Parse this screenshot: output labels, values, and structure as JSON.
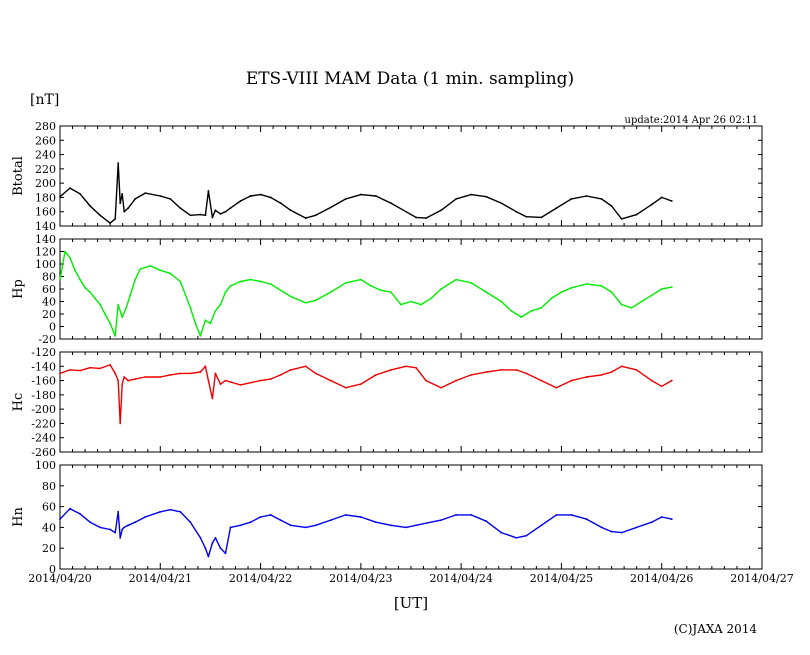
{
  "chart_data": {
    "type": "line",
    "title": "ETS-VIII MAM Data (1 min. sampling)",
    "unit_label": "[nT]",
    "update_text": "update:2014 Apr 26 02:11",
    "xlabel": "[UT]",
    "copyright": "(C)JAXA 2014",
    "x_ticks": [
      "2014/04/20",
      "2014/04/21",
      "2014/04/22",
      "2014/04/23",
      "2014/04/24",
      "2014/04/25",
      "2014/04/26",
      "2014/04/27"
    ],
    "xlim_days": [
      0,
      7
    ],
    "panels": [
      {
        "name": "Btotal",
        "color": "#000000",
        "ylim": [
          140,
          280
        ],
        "y_ticks": [
          140,
          160,
          180,
          200,
          220,
          240,
          260,
          280
        ],
        "x": [
          0.0,
          0.1,
          0.2,
          0.3,
          0.4,
          0.5,
          0.55,
          0.58,
          0.6,
          0.62,
          0.64,
          0.68,
          0.75,
          0.85,
          1.0,
          1.1,
          1.2,
          1.3,
          1.4,
          1.45,
          1.48,
          1.52,
          1.55,
          1.6,
          1.65,
          1.7,
          1.8,
          1.9,
          2.0,
          2.1,
          2.2,
          2.3,
          2.45,
          2.55,
          2.7,
          2.85,
          3.0,
          3.15,
          3.3,
          3.45,
          3.55,
          3.65,
          3.8,
          3.95,
          4.1,
          4.25,
          4.4,
          4.55,
          4.65,
          4.8,
          4.95,
          5.1,
          5.25,
          5.4,
          5.5,
          5.6,
          5.75,
          5.9,
          6.0,
          6.1
        ],
        "values": [
          181,
          193,
          185,
          168,
          155,
          144,
          150,
          228,
          172,
          185,
          160,
          165,
          178,
          186,
          182,
          178,
          165,
          155,
          156,
          155,
          189,
          152,
          162,
          157,
          160,
          165,
          175,
          182,
          184,
          180,
          172,
          162,
          151,
          155,
          166,
          178,
          184,
          182,
          172,
          160,
          152,
          151,
          162,
          178,
          184,
          181,
          172,
          160,
          153,
          152,
          165,
          178,
          182,
          178,
          168,
          150,
          156,
          170,
          180,
          175
        ]
      },
      {
        "name": "Hp",
        "color": "#00ee00",
        "ylim": [
          -20,
          140
        ],
        "y_ticks": [
          -20,
          0,
          20,
          40,
          60,
          80,
          100,
          120,
          140
        ],
        "x": [
          0.0,
          0.05,
          0.1,
          0.15,
          0.2,
          0.25,
          0.3,
          0.35,
          0.4,
          0.45,
          0.5,
          0.55,
          0.58,
          0.62,
          0.66,
          0.7,
          0.75,
          0.8,
          0.9,
          1.0,
          1.1,
          1.2,
          1.3,
          1.35,
          1.4,
          1.45,
          1.5,
          1.55,
          1.6,
          1.65,
          1.7,
          1.8,
          1.9,
          2.0,
          2.1,
          2.2,
          2.3,
          2.45,
          2.55,
          2.7,
          2.85,
          3.0,
          3.1,
          3.2,
          3.3,
          3.4,
          3.5,
          3.6,
          3.7,
          3.8,
          3.95,
          4.1,
          4.25,
          4.4,
          4.5,
          4.6,
          4.7,
          4.8,
          4.9,
          5.0,
          5.1,
          5.25,
          5.4,
          5.5,
          5.6,
          5.7,
          5.8,
          5.9,
          6.0,
          6.1
        ],
        "values": [
          75,
          120,
          110,
          90,
          75,
          62,
          55,
          45,
          35,
          20,
          5,
          -15,
          35,
          15,
          30,
          50,
          75,
          92,
          97,
          90,
          85,
          72,
          30,
          5,
          -15,
          10,
          5,
          25,
          35,
          55,
          65,
          72,
          75,
          72,
          68,
          58,
          48,
          38,
          42,
          55,
          70,
          75,
          65,
          58,
          55,
          35,
          40,
          35,
          45,
          60,
          75,
          70,
          55,
          40,
          25,
          15,
          25,
          30,
          45,
          55,
          62,
          68,
          65,
          55,
          35,
          30,
          40,
          50,
          60,
          63
        ]
      },
      {
        "name": "Hc",
        "color": "#ee0000",
        "ylim": [
          -260,
          -120
        ],
        "y_ticks": [
          -260,
          -240,
          -220,
          -200,
          -180,
          -160,
          -140,
          -120
        ],
        "x": [
          0.0,
          0.1,
          0.2,
          0.3,
          0.4,
          0.5,
          0.55,
          0.58,
          0.6,
          0.62,
          0.64,
          0.68,
          0.75,
          0.85,
          1.0,
          1.1,
          1.2,
          1.3,
          1.4,
          1.45,
          1.48,
          1.52,
          1.55,
          1.6,
          1.65,
          1.7,
          1.8,
          1.9,
          2.0,
          2.1,
          2.2,
          2.3,
          2.45,
          2.55,
          2.7,
          2.85,
          3.0,
          3.15,
          3.3,
          3.45,
          3.55,
          3.65,
          3.8,
          3.95,
          4.1,
          4.25,
          4.4,
          4.55,
          4.65,
          4.8,
          4.95,
          5.1,
          5.25,
          5.4,
          5.5,
          5.6,
          5.75,
          5.9,
          6.0,
          6.1
        ],
        "values": [
          -150,
          -145,
          -146,
          -142,
          -143,
          -138,
          -150,
          -160,
          -220,
          -165,
          -155,
          -160,
          -158,
          -155,
          -155,
          -152,
          -150,
          -150,
          -148,
          -140,
          -160,
          -185,
          -150,
          -165,
          -160,
          -162,
          -166,
          -163,
          -160,
          -158,
          -152,
          -145,
          -140,
          -150,
          -160,
          -170,
          -165,
          -152,
          -145,
          -140,
          -142,
          -160,
          -170,
          -160,
          -152,
          -148,
          -145,
          -145,
          -150,
          -160,
          -170,
          -160,
          -155,
          -152,
          -148,
          -140,
          -145,
          -160,
          -168,
          -160
        ]
      },
      {
        "name": "Hn",
        "color": "#0000ee",
        "ylim": [
          0,
          100
        ],
        "y_ticks": [
          0,
          20,
          40,
          60,
          80,
          100
        ],
        "x": [
          0.0,
          0.1,
          0.2,
          0.3,
          0.4,
          0.5,
          0.55,
          0.58,
          0.6,
          0.62,
          0.64,
          0.68,
          0.75,
          0.85,
          1.0,
          1.1,
          1.2,
          1.3,
          1.4,
          1.45,
          1.48,
          1.52,
          1.55,
          1.6,
          1.65,
          1.7,
          1.8,
          1.9,
          2.0,
          2.1,
          2.2,
          2.3,
          2.45,
          2.55,
          2.7,
          2.85,
          3.0,
          3.15,
          3.3,
          3.45,
          3.55,
          3.65,
          3.8,
          3.95,
          4.1,
          4.25,
          4.4,
          4.55,
          4.65,
          4.8,
          4.95,
          5.1,
          5.25,
          5.4,
          5.5,
          5.6,
          5.75,
          5.9,
          6.0,
          6.1
        ],
        "values": [
          48,
          58,
          53,
          45,
          40,
          38,
          35,
          55,
          30,
          38,
          40,
          42,
          45,
          50,
          55,
          57,
          55,
          45,
          30,
          20,
          12,
          25,
          30,
          20,
          15,
          40,
          42,
          45,
          50,
          52,
          47,
          42,
          40,
          42,
          47,
          52,
          50,
          45,
          42,
          40,
          42,
          44,
          47,
          52,
          52,
          46,
          35,
          30,
          32,
          42,
          52,
          52,
          48,
          40,
          36,
          35,
          40,
          45,
          50,
          48
        ]
      }
    ]
  }
}
